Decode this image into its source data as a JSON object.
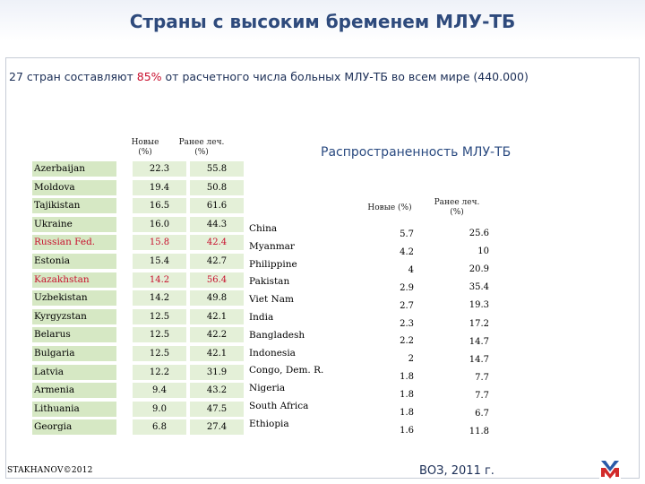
{
  "title": "Страны с высоким бременем МЛУ-ТБ",
  "subtitle": {
    "prefix": "27 стран составляют ",
    "highlight": "85%",
    "suffix": " от расчетного числа больных МЛУ-ТБ во всем мире (440.000)"
  },
  "left_table": {
    "col1_header": "Новые (%)",
    "col2_header": "Ранее леч. (%)",
    "rows": [
      {
        "country": "Azerbaijan",
        "new": "22.3",
        "prev": "55.8",
        "highlight": false
      },
      {
        "country": "Moldova",
        "new": "19.4",
        "prev": "50.8",
        "highlight": false
      },
      {
        "country": "Tajikistan",
        "new": "16.5",
        "prev": "61.6",
        "highlight": false
      },
      {
        "country": "Ukraine",
        "new": "16.0",
        "prev": "44.3",
        "highlight": false
      },
      {
        "country": "Russian Fed.",
        "new": "15.8",
        "prev": "42.4",
        "highlight": true
      },
      {
        "country": "Estonia",
        "new": "15.4",
        "prev": "42.7",
        "highlight": false
      },
      {
        "country": "Kazakhstan",
        "new": "14.2",
        "prev": "56.4",
        "highlight": true
      },
      {
        "country": "Uzbekistan",
        "new": "14.2",
        "prev": "49.8",
        "highlight": false
      },
      {
        "country": "Kyrgyzstan",
        "new": "12.5",
        "prev": "42.1",
        "highlight": false
      },
      {
        "country": "Belarus",
        "new": "12.5",
        "prev": "42.2",
        "highlight": false
      },
      {
        "country": "Bulgaria",
        "new": "12.5",
        "prev": "42.1",
        "highlight": false
      },
      {
        "country": "Latvia",
        "new": "12.2",
        "prev": "31.9",
        "highlight": false
      },
      {
        "country": "Armenia",
        "new": "9.4",
        "prev": "43.2",
        "highlight": false
      },
      {
        "country": "Lithuania",
        "new": "9.0",
        "prev": "47.5",
        "highlight": false
      },
      {
        "country": "Georgia",
        "new": "6.8",
        "prev": "27.4",
        "highlight": false
      }
    ]
  },
  "right_table": {
    "title": "Распространенность МЛУ-ТБ",
    "col1_header": "Новые (%)",
    "col2_header": "Ранее леч. (%)",
    "rows": [
      {
        "country": "China",
        "new": "5.7",
        "prev": "25.6"
      },
      {
        "country": "Myanmar",
        "new": "4.2",
        "prev": "10"
      },
      {
        "country": "Philippine",
        "new": "4",
        "prev": "20.9"
      },
      {
        "country": "Pakistan",
        "new": "2.9",
        "prev": "35.4"
      },
      {
        "country": "Viet Nam",
        "new": "2.7",
        "prev": "19.3"
      },
      {
        "country": "India",
        "new": "2.3",
        "prev": "17.2"
      },
      {
        "country": "Bangladesh",
        "new": "2.2",
        "prev": "14.7"
      },
      {
        "country": "Indonesia",
        "new": "2",
        "prev": "14.7"
      },
      {
        "country": "Congo, Dem. R.",
        "new": "1.8",
        "prev": "7.7"
      },
      {
        "country": "Nigeria",
        "new": "1.8",
        "prev": "7.7"
      },
      {
        "country": "South Africa",
        "new": "1.8",
        "prev": "6.7"
      },
      {
        "country": "Ethiopia",
        "new": "1.6",
        "prev": "11.8"
      }
    ]
  },
  "footer": {
    "copyright": "STAKHANOV©2012",
    "source": "ВОЗ, 2011 г."
  },
  "colors": {
    "title": "#2e4a7c",
    "highlight_red": "#c8102e",
    "row_green": "#d6e8c4",
    "logo_blue": "#2a5aa8",
    "logo_red": "#d22b2b"
  },
  "icons": {
    "logo": "mo-logo-icon"
  }
}
